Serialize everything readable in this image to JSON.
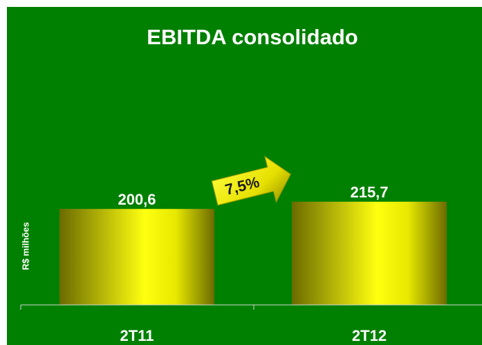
{
  "chart_data": {
    "type": "bar",
    "title": "EBITDA consolidado",
    "y_label": "R$ milhões",
    "annotation": "7,5%",
    "categories": [
      "2T11",
      "2T12"
    ],
    "values": [
      200.6,
      215.7
    ],
    "value_labels": [
      "200,6",
      "215,7"
    ],
    "ylim": [
      0,
      620
    ],
    "grid": false
  }
}
